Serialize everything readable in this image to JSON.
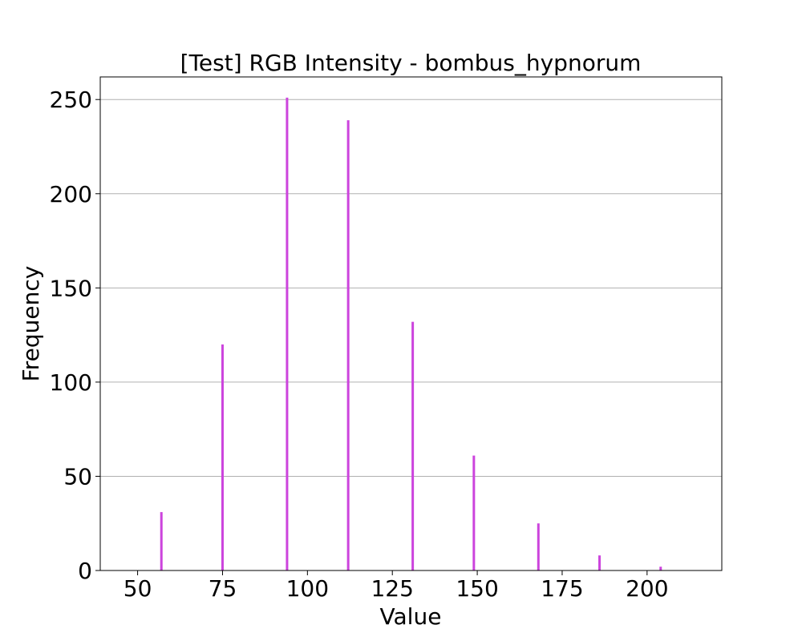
{
  "chart_data": {
    "type": "bar",
    "title": "[Test] RGB Intensity - bombus_hypnorum",
    "xlabel": "Value",
    "ylabel": "Frequency",
    "xlim": [
      39,
      222
    ],
    "ylim": [
      0,
      262
    ],
    "xticks": [
      50,
      75,
      100,
      125,
      150,
      175,
      200
    ],
    "yticks": [
      0,
      50,
      100,
      150,
      200,
      250
    ],
    "grid": "y",
    "bar_color": "#cc44dd",
    "series": [
      {
        "x": [
          57,
          75,
          94,
          112,
          131,
          149,
          168,
          186,
          204
        ],
        "values": [
          31,
          120,
          251,
          239,
          132,
          61,
          25,
          8,
          2
        ]
      }
    ]
  }
}
